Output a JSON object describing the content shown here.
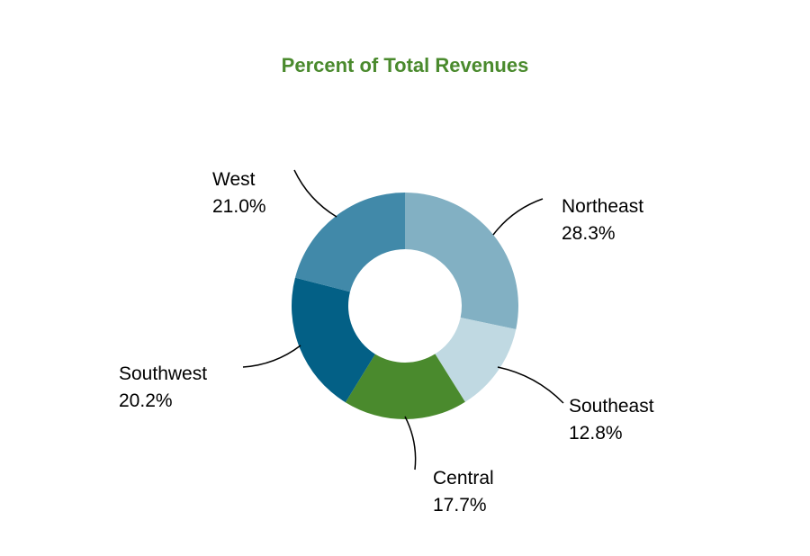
{
  "chart_data": {
    "type": "pie",
    "title": "Percent of Total Revenues",
    "title_color": "#4a8a2d",
    "inner_radius_ratio": 0.5,
    "categories": [
      "Northeast",
      "Southeast",
      "Central",
      "Southwest",
      "West"
    ],
    "values": [
      28.3,
      12.8,
      17.7,
      20.2,
      21.0
    ],
    "value_labels": [
      "28.3%",
      "12.8%",
      "17.7%",
      "20.2%",
      "21.0%"
    ],
    "colors": [
      "#82b0c3",
      "#c0d9e2",
      "#4a8a2d",
      "#036086",
      "#4189a9"
    ],
    "start": "12 o'clock, clockwise",
    "legend": "none",
    "data_labels": "outside with leader lines"
  }
}
